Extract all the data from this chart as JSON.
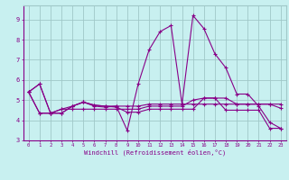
{
  "xlabel": "Windchill (Refroidissement éolien,°C)",
  "background_color": "#c8f0f0",
  "grid_color": "#a0c8c8",
  "line_color": "#880088",
  "xlim": [
    -0.5,
    23.5
  ],
  "ylim": [
    3.0,
    9.7
  ],
  "yticks": [
    3,
    4,
    5,
    6,
    7,
    8,
    9
  ],
  "xticks": [
    0,
    1,
    2,
    3,
    4,
    5,
    6,
    7,
    8,
    9,
    10,
    11,
    12,
    13,
    14,
    15,
    16,
    17,
    18,
    19,
    20,
    21,
    22,
    23
  ],
  "series": [
    [
      5.4,
      5.8,
      4.35,
      4.35,
      4.7,
      4.9,
      4.7,
      4.65,
      4.7,
      3.5,
      5.8,
      7.5,
      8.4,
      8.7,
      4.8,
      9.2,
      8.55,
      7.3,
      6.6,
      5.3,
      5.3,
      4.7,
      3.9,
      3.6
    ],
    [
      5.4,
      4.35,
      4.35,
      4.55,
      4.55,
      4.55,
      4.55,
      4.55,
      4.55,
      4.55,
      4.55,
      4.7,
      4.7,
      4.7,
      4.7,
      5.0,
      5.1,
      5.1,
      5.1,
      4.8,
      4.8,
      4.8,
      4.8,
      4.8
    ],
    [
      5.4,
      5.8,
      4.35,
      4.35,
      4.7,
      4.9,
      4.75,
      4.7,
      4.7,
      4.7,
      4.7,
      4.8,
      4.8,
      4.8,
      4.8,
      4.8,
      4.8,
      4.8,
      4.8,
      4.8,
      4.8,
      4.8,
      4.8,
      4.6
    ],
    [
      5.4,
      4.35,
      4.35,
      4.55,
      4.7,
      4.9,
      4.75,
      4.7,
      4.65,
      4.4,
      4.4,
      4.55,
      4.55,
      4.55,
      4.55,
      4.55,
      5.1,
      5.1,
      4.5,
      4.5,
      4.5,
      4.5,
      3.6,
      3.6
    ]
  ]
}
